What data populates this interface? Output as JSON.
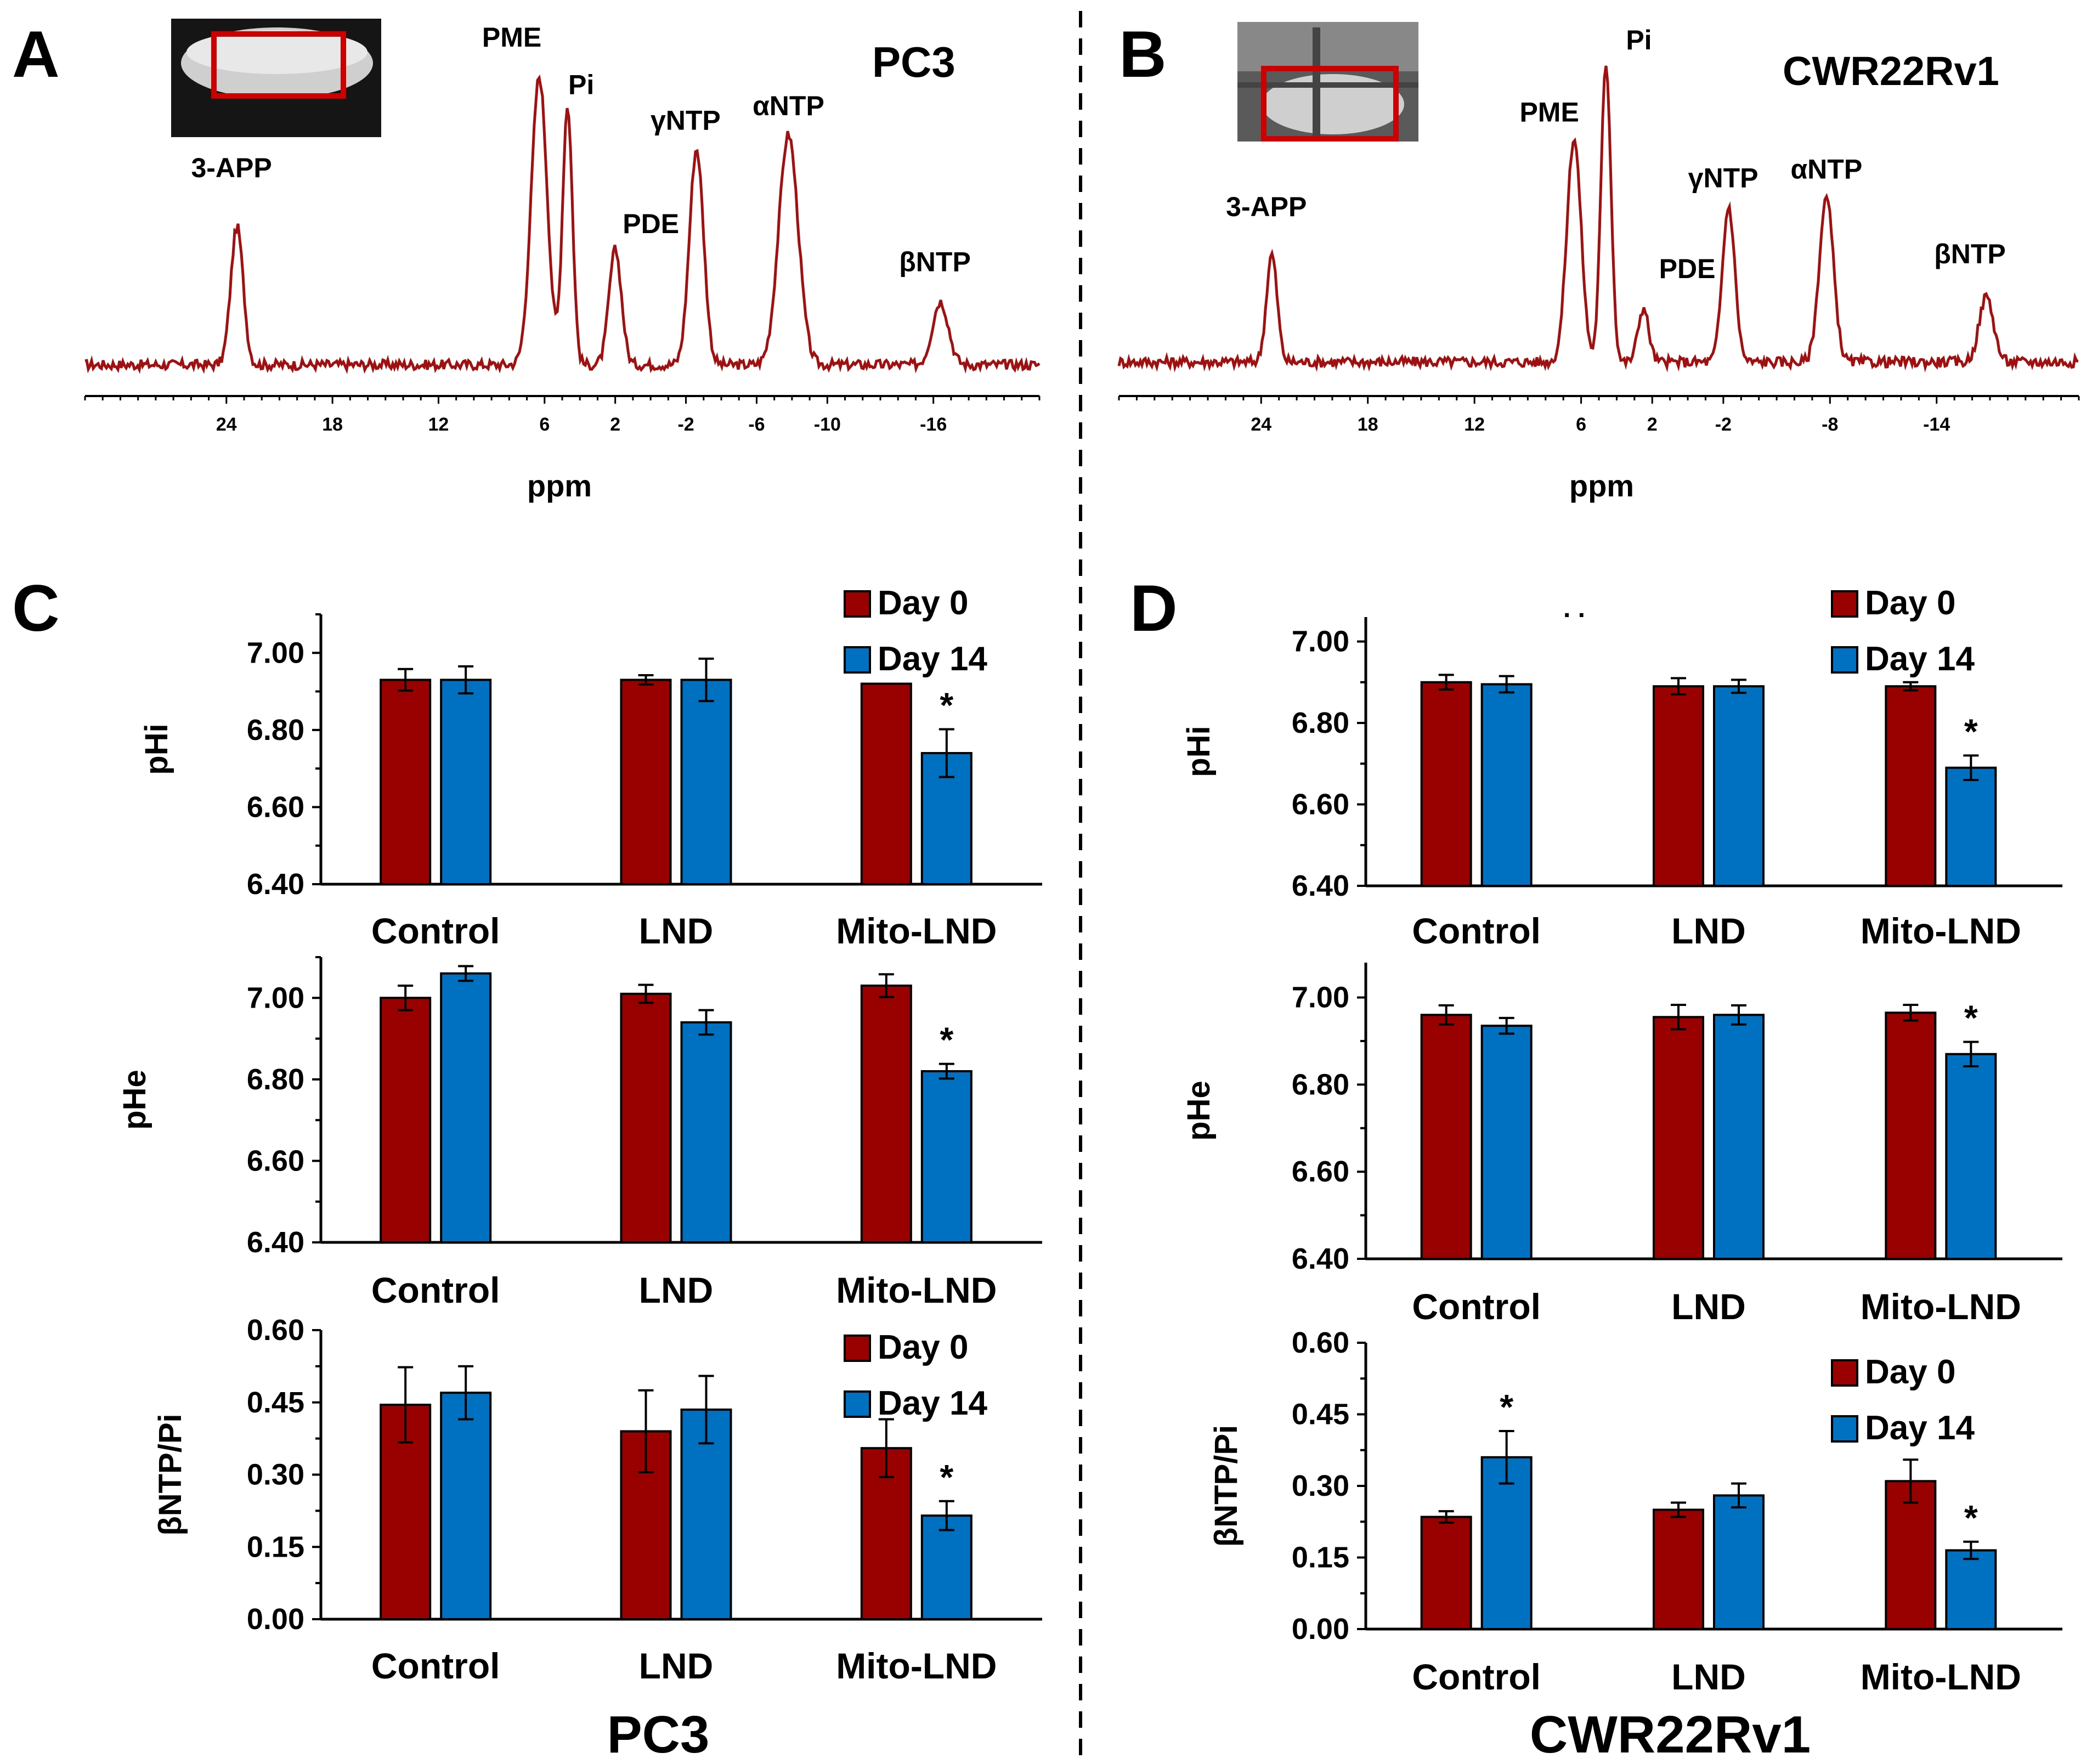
{
  "colors": {
    "day0": "#990000",
    "day14": "#0070c0",
    "trace": "#a01010",
    "axis": "#000000"
  },
  "spectra": [
    {
      "id": "A",
      "panel_letter": "A",
      "cell_line": "PC3",
      "xlabel": "ppm",
      "xlim": [
        32,
        -22
      ],
      "ticks": [
        24,
        18,
        12,
        6,
        2,
        -2,
        -6,
        -10,
        -16
      ],
      "peaks": [
        {
          "label": "3-APP",
          "ppm": 23.4,
          "height": 0.48,
          "width": 0.35
        },
        {
          "label": "PME",
          "ppm": 6.3,
          "height": 1.0,
          "width": 0.45
        },
        {
          "label": "Pi",
          "ppm": 4.7,
          "height": 0.9,
          "width": 0.28
        },
        {
          "label": "PDE",
          "ppm": 2.0,
          "height": 0.4,
          "width": 0.35
        },
        {
          "label": "γNTP",
          "ppm": -2.6,
          "height": 0.75,
          "width": 0.4
        },
        {
          "label": "αNTP",
          "ppm": -7.8,
          "height": 0.8,
          "width": 0.55
        },
        {
          "label": "βNTP",
          "ppm": -16.4,
          "height": 0.22,
          "width": 0.45
        }
      ]
    },
    {
      "id": "B",
      "panel_letter": "B",
      "cell_line": "CWR22Rv1",
      "xlabel": "ppm",
      "xlim": [
        32,
        -22
      ],
      "ticks": [
        24,
        18,
        12,
        6,
        2,
        -2,
        -8,
        -14
      ],
      "peaks": [
        {
          "label": "3-APP",
          "ppm": 23.4,
          "height": 0.36,
          "width": 0.3
        },
        {
          "label": "PME",
          "ppm": 6.4,
          "height": 0.75,
          "width": 0.4
        },
        {
          "label": "Pi",
          "ppm": 4.6,
          "height": 1.0,
          "width": 0.28
        },
        {
          "label": "PDE",
          "ppm": 2.5,
          "height": 0.18,
          "width": 0.3
        },
        {
          "label": "γNTP",
          "ppm": -2.3,
          "height": 0.52,
          "width": 0.35
        },
        {
          "label": "αNTP",
          "ppm": -7.8,
          "height": 0.55,
          "width": 0.4
        },
        {
          "label": "βNTP",
          "ppm": -16.8,
          "height": 0.22,
          "width": 0.4
        }
      ]
    }
  ],
  "labels": {
    "C": "C",
    "D": "D",
    "bottom_left": "PC3",
    "bottom_right": "CWR22Rv1",
    "stray_dots": ". ."
  },
  "chart_data": [
    {
      "id": "C-pHi",
      "panel": "C",
      "type": "bar",
      "categories": [
        "Control",
        "LND",
        "Mito-LND"
      ],
      "ylabel": "pHi",
      "ylim": [
        6.4,
        7.1
      ],
      "ticks": [
        "6.40",
        "6.60",
        "6.80",
        "7.00"
      ],
      "legend": [
        "Day 0",
        "Day 14"
      ],
      "series": [
        {
          "name": "Day 0",
          "values": [
            6.93,
            6.93,
            6.92
          ],
          "errors": [
            0.028,
            0.012,
            0.0
          ]
        },
        {
          "name": "Day 14",
          "values": [
            6.93,
            6.93,
            6.74
          ],
          "errors": [
            0.035,
            0.055,
            0.062
          ]
        }
      ],
      "significance": [
        null,
        null,
        "*"
      ]
    },
    {
      "id": "C-pHe",
      "panel": "C",
      "type": "bar",
      "categories": [
        "Control",
        "LND",
        "Mito-LND"
      ],
      "ylabel": "pHe",
      "ylim": [
        6.4,
        7.1
      ],
      "ticks": [
        "6.40",
        "6.60",
        "6.80",
        "7.00"
      ],
      "legend": [],
      "series": [
        {
          "name": "Day 0",
          "values": [
            7.0,
            7.01,
            7.03
          ],
          "errors": [
            0.03,
            0.022,
            0.028
          ]
        },
        {
          "name": "Day 14",
          "values": [
            7.06,
            6.94,
            6.82
          ],
          "errors": [
            0.018,
            0.03,
            0.018
          ]
        }
      ],
      "significance": [
        null,
        null,
        "*"
      ]
    },
    {
      "id": "C-ntp",
      "panel": "C",
      "type": "bar",
      "categories": [
        "Control",
        "LND",
        "Mito-LND"
      ],
      "ylabel": "βNTP/Pi",
      "ylim": [
        0.0,
        0.6
      ],
      "ticks": [
        "0.00",
        "0.15",
        "0.30",
        "0.45",
        "0.60"
      ],
      "legend": [
        "Day 0",
        "Day 14"
      ],
      "series": [
        {
          "name": "Day 0",
          "values": [
            0.445,
            0.39,
            0.355
          ],
          "errors": [
            0.078,
            0.085,
            0.06
          ]
        },
        {
          "name": "Day 14",
          "values": [
            0.47,
            0.435,
            0.215
          ],
          "errors": [
            0.055,
            0.07,
            0.03
          ]
        }
      ],
      "significance": [
        null,
        null,
        "*"
      ]
    },
    {
      "id": "D-pHi",
      "panel": "D",
      "type": "bar",
      "categories": [
        "Control",
        "LND",
        "Mito-LND"
      ],
      "ylabel": "pHi",
      "ylim": [
        6.4,
        7.06
      ],
      "ticks": [
        "6.40",
        "6.60",
        "6.80",
        "7.00"
      ],
      "legend": [
        "Day 0",
        "Day 14"
      ],
      "series": [
        {
          "name": "Day 0",
          "values": [
            6.9,
            6.89,
            6.89
          ],
          "errors": [
            0.018,
            0.02,
            0.01
          ]
        },
        {
          "name": "Day 14",
          "values": [
            6.895,
            6.89,
            6.69
          ],
          "errors": [
            0.02,
            0.016,
            0.03
          ]
        }
      ],
      "significance": [
        null,
        null,
        "*"
      ]
    },
    {
      "id": "D-pHe",
      "panel": "D",
      "type": "bar",
      "categories": [
        "Control",
        "LND",
        "Mito-LND"
      ],
      "ylabel": "pHe",
      "ylim": [
        6.4,
        7.08
      ],
      "ticks": [
        "6.40",
        "6.60",
        "6.80",
        "7.00"
      ],
      "legend": [],
      "series": [
        {
          "name": "Day 0",
          "values": [
            6.96,
            6.955,
            6.965
          ],
          "errors": [
            0.022,
            0.028,
            0.018
          ]
        },
        {
          "name": "Day 14",
          "values": [
            6.935,
            6.96,
            6.87
          ],
          "errors": [
            0.018,
            0.022,
            0.028
          ]
        }
      ],
      "significance": [
        null,
        null,
        "*"
      ]
    },
    {
      "id": "D-ntp",
      "panel": "D",
      "type": "bar",
      "categories": [
        "Control",
        "LND",
        "Mito-LND"
      ],
      "ylabel": "βNTP/Pi",
      "ylim": [
        0.0,
        0.6
      ],
      "ticks": [
        "0.00",
        "0.15",
        "0.30",
        "0.45",
        "0.60"
      ],
      "legend": [
        "Day 0",
        "Day 14"
      ],
      "series": [
        {
          "name": "Day 0",
          "values": [
            0.235,
            0.25,
            0.31
          ],
          "errors": [
            0.012,
            0.015,
            0.045
          ]
        },
        {
          "name": "Day 14",
          "values": [
            0.36,
            0.28,
            0.165
          ],
          "errors": [
            0.055,
            0.025,
            0.018
          ]
        }
      ],
      "significance": [
        "*",
        null,
        "*"
      ]
    }
  ]
}
